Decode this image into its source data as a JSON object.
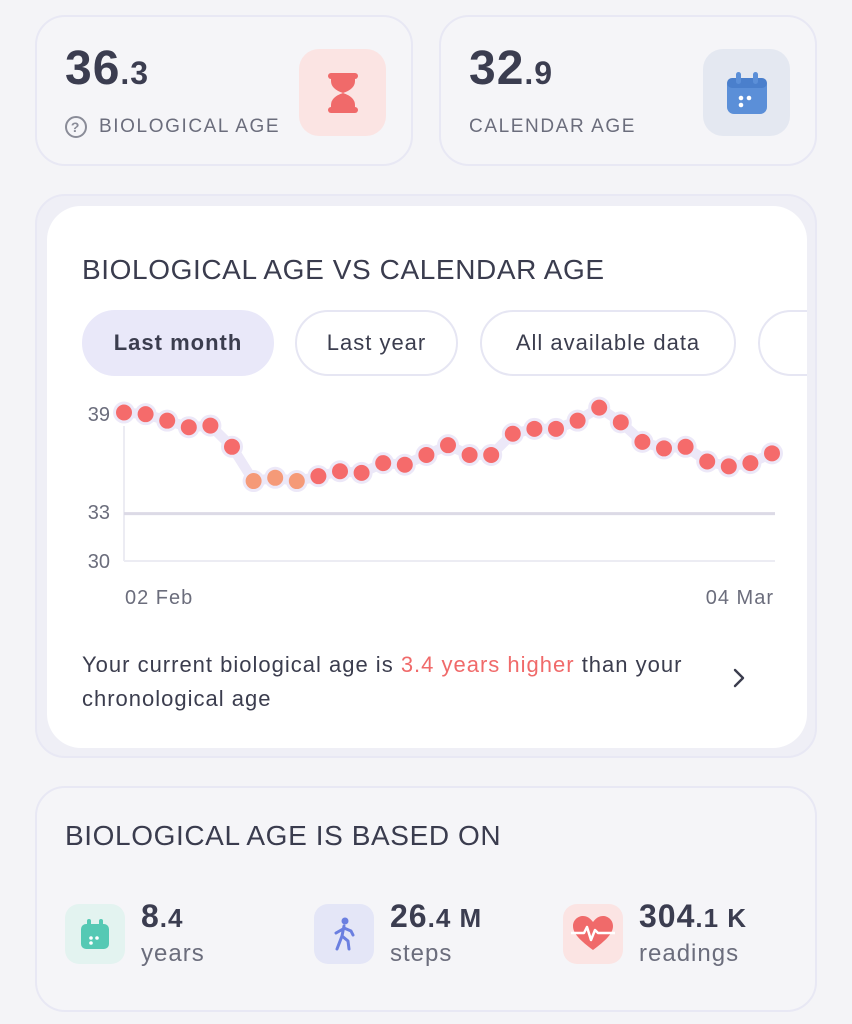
{
  "bio_card": {
    "value_int": "36",
    "value_dec": ".3",
    "label": "BIOLOGICAL AGE",
    "help_glyph": "?",
    "icon": "hourglass-icon",
    "accent": "#f06a6a"
  },
  "cal_card": {
    "value_int": "32",
    "value_dec": ".9",
    "label": "CALENDAR AGE",
    "icon": "calendar-icon",
    "accent": "#5b8fd8"
  },
  "chart_section": {
    "title": "BIOLOGICAL AGE VS CALENDAR AGE",
    "pills": [
      "Last month",
      "Last year",
      "All available data"
    ],
    "selected_pill": "Last month",
    "summary_prefix": "Your current biological age is ",
    "summary_highlight": "3.4 years higher",
    "summary_suffix": " than your chronological age",
    "highlight_color": "#f06a6a"
  },
  "chart_data": {
    "type": "scatter",
    "title": "",
    "xlabel": "",
    "ylabel": "",
    "x_tick_labels": [
      "02 Feb",
      "04 Mar"
    ],
    "y_ticks": [
      39,
      33,
      30
    ],
    "ylim": [
      30,
      39.5
    ],
    "series": [
      {
        "values": [
          39.1,
          39.0,
          38.6,
          38.2,
          38.3,
          37.0,
          34.9,
          35.1,
          34.9,
          35.2,
          35.5,
          35.4,
          36.0,
          35.9,
          36.5,
          37.1,
          36.5,
          36.5,
          37.8,
          38.1,
          38.1,
          38.6,
          39.4,
          38.5,
          37.3,
          36.9,
          37.0,
          36.1,
          35.8,
          36.0,
          36.6
        ],
        "point_colors": [
          "red",
          "red",
          "red",
          "red",
          "red",
          "red",
          "orange",
          "orange",
          "orange",
          "red",
          "red",
          "red",
          "red",
          "red",
          "red",
          "red",
          "red",
          "red",
          "red",
          "red",
          "red",
          "red",
          "red",
          "red",
          "red",
          "red",
          "red",
          "red",
          "red",
          "red",
          "red"
        ]
      },
      {
        "values": [
          32.9,
          32.9
        ],
        "style": "line"
      }
    ],
    "colors": {
      "red": "#f56b6b",
      "orange": "#f59a78",
      "halo": "#ece8f8",
      "calendar_line": "#dcdae6"
    },
    "grid": false
  },
  "based_on": {
    "title": "BIOLOGICAL AGE IS BASED ON",
    "metrics": [
      {
        "int": "8",
        "dec": ".4",
        "unit": "",
        "label": "years",
        "icon": "calendar-icon",
        "tile": "#e3f3f0",
        "color": "#55c9b4"
      },
      {
        "int": "26",
        "dec": ".4",
        "unit": " M",
        "label": "steps",
        "icon": "walking-person-icon",
        "tile": "#e4e6f7",
        "color": "#6b7fe0"
      },
      {
        "int": "304",
        "dec": ".1",
        "unit": " K",
        "label": "readings",
        "icon": "heart-pulse-icon",
        "tile": "#fbe4e3",
        "color": "#f06a6a"
      }
    ]
  }
}
